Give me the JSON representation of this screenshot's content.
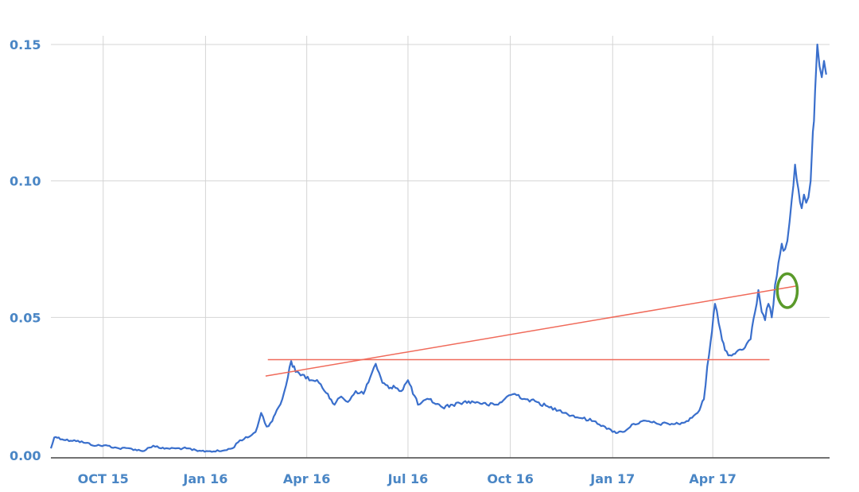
{
  "chart_data": {
    "type": "line",
    "title": "",
    "xlabel": "",
    "ylabel": "",
    "x_tick_labels": [
      {
        "date": "2015-10-01",
        "label": "OCT 15"
      },
      {
        "date": "2016-01-01",
        "label": "Jan 16"
      },
      {
        "date": "2016-04-01",
        "label": "Apr 16"
      },
      {
        "date": "2016-07-01",
        "label": "Jul 16"
      },
      {
        "date": "2016-10-01",
        "label": "Oct 16"
      },
      {
        "date": "2017-01-01",
        "label": "Jan 17"
      },
      {
        "date": "2017-04-01",
        "label": "Apr 17"
      }
    ],
    "y_ticks": [
      {
        "value": 0.0,
        "label": "0.00"
      },
      {
        "value": 0.05,
        "label": "0.05"
      },
      {
        "value": 0.1,
        "label": "0.10"
      },
      {
        "value": 0.15,
        "label": "0.15"
      }
    ],
    "xlim": [
      "2015-08-15",
      "2017-07-15"
    ],
    "ylim": [
      0.0,
      0.15
    ],
    "grid": true,
    "colors": {
      "series": "#3a6fcc",
      "trendline": "#f06a5a",
      "highlight_circle": "#5a9a2a",
      "tick_labels": "#4a86c5",
      "grid": "#d4d4d4",
      "axis": "#444444"
    },
    "series": [
      {
        "x": [
          "2015-08-15",
          "2015-08-18",
          "2015-08-22",
          "2015-08-28",
          "2015-09-05",
          "2015-09-15",
          "2015-09-25",
          "2015-10-05",
          "2015-10-15",
          "2015-10-25",
          "2015-11-05",
          "2015-11-15",
          "2015-11-22",
          "2015-11-28",
          "2015-12-05",
          "2015-12-15",
          "2015-12-25",
          "2016-01-05",
          "2016-01-15",
          "2016-01-25",
          "2016-02-01",
          "2016-02-08",
          "2016-02-15",
          "2016-02-20",
          "2016-02-25",
          "2016-03-01",
          "2016-03-05",
          "2016-03-10",
          "2016-03-15",
          "2016-03-18",
          "2016-03-22",
          "2016-03-28",
          "2016-04-05",
          "2016-04-12",
          "2016-04-20",
          "2016-04-26",
          "2016-05-02",
          "2016-05-08",
          "2016-05-15",
          "2016-05-22",
          "2016-05-28",
          "2016-06-02",
          "2016-06-08",
          "2016-06-14",
          "2016-06-18",
          "2016-06-25",
          "2016-07-01",
          "2016-07-10",
          "2016-07-20",
          "2016-08-01",
          "2016-08-10",
          "2016-08-20",
          "2016-09-01",
          "2016-09-10",
          "2016-09-20",
          "2016-09-28",
          "2016-10-05",
          "2016-10-15",
          "2016-10-25",
          "2016-11-05",
          "2016-11-15",
          "2016-11-25",
          "2016-12-05",
          "2016-12-15",
          "2016-12-25",
          "2017-01-01",
          "2017-01-10",
          "2017-01-20",
          "2017-02-01",
          "2017-02-10",
          "2017-02-20",
          "2017-03-01",
          "2017-03-10",
          "2017-03-15",
          "2017-03-20",
          "2017-03-24",
          "2017-03-27",
          "2017-03-30",
          "2017-04-03",
          "2017-04-08",
          "2017-04-12",
          "2017-04-18",
          "2017-04-24",
          "2017-04-30",
          "2017-05-05",
          "2017-05-09",
          "2017-05-12",
          "2017-05-15",
          "2017-05-18",
          "2017-05-21",
          "2017-05-24",
          "2017-05-27",
          "2017-05-30",
          "2017-06-02",
          "2017-06-05",
          "2017-06-07",
          "2017-06-09",
          "2017-06-11",
          "2017-06-14",
          "2017-06-17",
          "2017-06-20",
          "2017-06-22",
          "2017-06-24",
          "2017-06-26",
          "2017-06-28",
          "2017-06-30",
          "2017-07-01",
          "2017-07-02",
          "2017-07-04",
          "2017-07-06",
          "2017-07-08",
          "2017-07-10",
          "2017-07-12"
        ],
        "y": [
          0.002,
          0.006,
          0.006,
          0.005,
          0.005,
          0.004,
          0.003,
          0.003,
          0.002,
          0.002,
          0.001,
          0.003,
          0.002,
          0.002,
          0.002,
          0.002,
          0.001,
          0.001,
          0.001,
          0.002,
          0.005,
          0.006,
          0.008,
          0.015,
          0.01,
          0.012,
          0.016,
          0.02,
          0.028,
          0.034,
          0.03,
          0.029,
          0.027,
          0.026,
          0.022,
          0.018,
          0.021,
          0.019,
          0.023,
          0.022,
          0.028,
          0.033,
          0.026,
          0.024,
          0.025,
          0.023,
          0.027,
          0.018,
          0.02,
          0.017,
          0.018,
          0.019,
          0.019,
          0.018,
          0.018,
          0.021,
          0.022,
          0.02,
          0.019,
          0.017,
          0.016,
          0.014,
          0.013,
          0.012,
          0.01,
          0.008,
          0.008,
          0.011,
          0.012,
          0.011,
          0.011,
          0.011,
          0.012,
          0.014,
          0.016,
          0.02,
          0.032,
          0.041,
          0.055,
          0.045,
          0.038,
          0.036,
          0.038,
          0.039,
          0.042,
          0.052,
          0.06,
          0.052,
          0.049,
          0.055,
          0.05,
          0.062,
          0.07,
          0.077,
          0.075,
          0.078,
          0.085,
          0.093,
          0.106,
          0.097,
          0.09,
          0.095,
          0.092,
          0.094,
          0.1,
          0.118,
          0.122,
          0.133,
          0.15,
          0.142,
          0.138,
          0.144,
          0.139
        ]
      }
    ],
    "annotations": [
      {
        "type": "line",
        "color": "trendline",
        "x1": "2016-02-26",
        "y1": 0.0345,
        "x2": "2017-05-22",
        "y2": 0.0345
      },
      {
        "type": "line",
        "color": "trendline",
        "x1": "2016-02-24",
        "y1": 0.0285,
        "x2": "2017-06-15",
        "y2": 0.0615
      },
      {
        "type": "ellipse",
        "color": "highlight_circle",
        "cx": "2017-06-07",
        "cy": 0.0598,
        "rx_days": 9,
        "ry": 0.0062
      }
    ]
  }
}
